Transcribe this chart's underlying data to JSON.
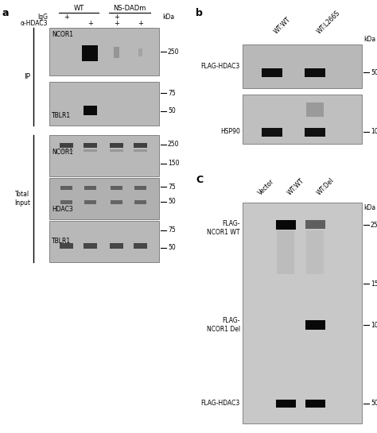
{
  "fig_bg": "#ffffff",
  "blot_bg": "#b8b8b8",
  "blot_bg2": "#c0c0c0",
  "band_dark": "#111111",
  "band_med": "#444444",
  "band_light": "#777777",
  "panel_a": {
    "label": "a",
    "header_WT": "WT",
    "header_NS": "NS-DADm",
    "IgG": "IgG",
    "aHDAC3": "α-HDAC3",
    "IP_label": "IP",
    "Total_label": "Total\nInput",
    "blot_labels": [
      "NCOR1",
      "TBLR1",
      "NCOR1",
      "HDAC3",
      "TBLR1"
    ],
    "kDa": "kDa"
  },
  "panel_b": {
    "label": "b",
    "col1": "WT:WT",
    "col2": "WT:L266S",
    "labels": [
      "FLAG-HDAC3",
      "HSP90"
    ],
    "kDa": "kDa"
  },
  "panel_c": {
    "label": "C",
    "col1": "Vector",
    "col2": "WT:WT",
    "col3": "WT:Del",
    "labels": [
      "FLAG-\nNCOR1 WT",
      "FLAG-\nNCOR1 Del",
      "FLAG-HDAC3"
    ],
    "kDa": "kDa"
  }
}
